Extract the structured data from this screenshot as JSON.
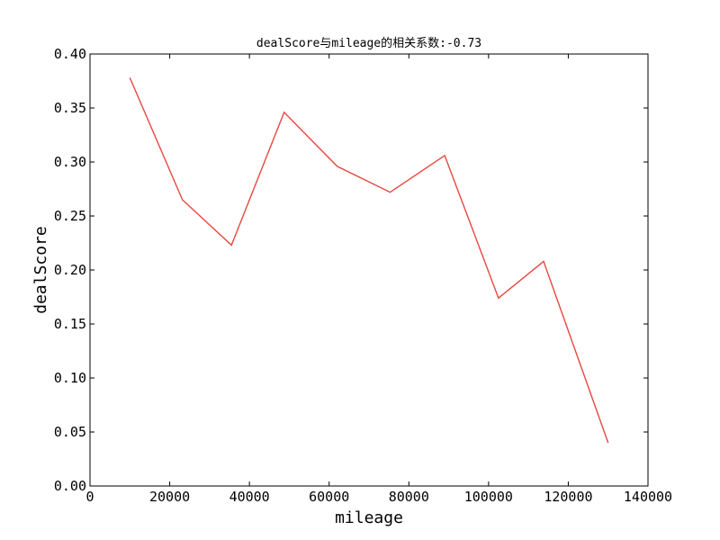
{
  "chart_data": {
    "type": "line",
    "title": "dealScore与mileage的相关系数:-0.73",
    "xlabel": "mileage",
    "ylabel": "dealScore",
    "xlim": [
      0,
      140000
    ],
    "ylim": [
      0.0,
      0.4
    ],
    "xticks": [
      0,
      20000,
      40000,
      60000,
      80000,
      100000,
      120000,
      140000
    ],
    "xtick_labels": [
      "0",
      "20000",
      "40000",
      "60000",
      "80000",
      "100000",
      "120000",
      "140000"
    ],
    "yticks": [
      0.0,
      0.05,
      0.1,
      0.15,
      0.2,
      0.25,
      0.3,
      0.35,
      0.4
    ],
    "ytick_labels": [
      "0.00",
      "0.05",
      "0.10",
      "0.15",
      "0.20",
      "0.25",
      "0.30",
      "0.35",
      "0.40"
    ],
    "grid": false,
    "legend": "none",
    "series": [
      {
        "color": "#e8473f",
        "x": [
          10000,
          23200,
          35500,
          48700,
          62000,
          75300,
          89000,
          102500,
          113800,
          130000
        ],
        "y": [
          0.378,
          0.265,
          0.223,
          0.346,
          0.296,
          0.272,
          0.306,
          0.174,
          0.208,
          0.04
        ]
      }
    ]
  }
}
